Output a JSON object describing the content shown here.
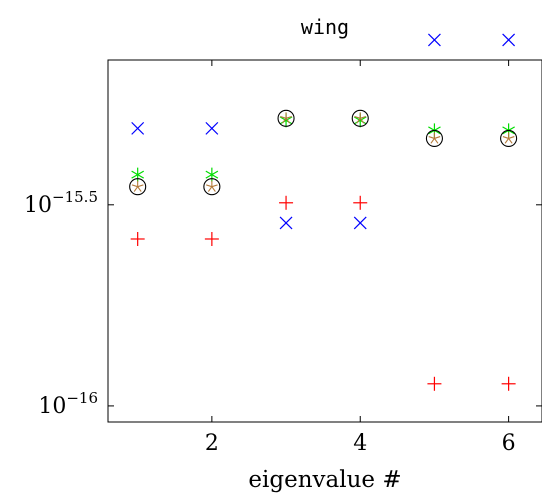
{
  "chart_data": {
    "type": "scatter",
    "title": "wing",
    "xlabel": "eigenvalue #",
    "ylabel": "",
    "xlim": [
      0.6,
      6.45
    ],
    "ylog": true,
    "ylim_log10": [
      -16.04,
      -15.14
    ],
    "x_ticks": [
      2,
      4,
      6
    ],
    "y_ticks": [
      {
        "log10": -15.5,
        "base": "10",
        "exp": "−15.5"
      },
      {
        "log10": -16.0,
        "base": "10",
        "exp": "−16"
      }
    ],
    "grid": false,
    "series": [
      {
        "marker": "x",
        "color": "#0000ff",
        "points": [
          [
            1,
            -15.31
          ],
          [
            2,
            -15.31
          ],
          [
            3,
            -15.545
          ],
          [
            4,
            -15.545
          ],
          [
            5,
            -15.09
          ],
          [
            6,
            -15.09
          ]
        ]
      },
      {
        "marker": "plus",
        "color": "#ff0000",
        "points": [
          [
            1,
            -15.585
          ],
          [
            2,
            -15.585
          ],
          [
            3,
            -15.495
          ],
          [
            4,
            -15.495
          ],
          [
            5,
            -15.945
          ],
          [
            6,
            -15.945
          ]
        ]
      },
      {
        "marker": "star",
        "color": "#00dd00",
        "points": [
          [
            1,
            -15.425
          ],
          [
            2,
            -15.425
          ],
          [
            3,
            -15.29
          ],
          [
            4,
            -15.29
          ],
          [
            5,
            -15.315
          ],
          [
            6,
            -15.315
          ]
        ]
      },
      {
        "marker": "asterisk",
        "color": "#b37a3a",
        "points": [
          [
            1,
            -15.455
          ],
          [
            2,
            -15.455
          ],
          [
            3,
            -15.285
          ],
          [
            4,
            -15.285
          ],
          [
            5,
            -15.335
          ],
          [
            6,
            -15.335
          ]
        ]
      },
      {
        "marker": "circle",
        "color": "#000000",
        "points": [
          [
            1,
            -15.455
          ],
          [
            2,
            -15.455
          ],
          [
            3,
            -15.285
          ],
          [
            4,
            -15.285
          ],
          [
            5,
            -15.335
          ],
          [
            6,
            -15.335
          ]
        ]
      }
    ]
  }
}
